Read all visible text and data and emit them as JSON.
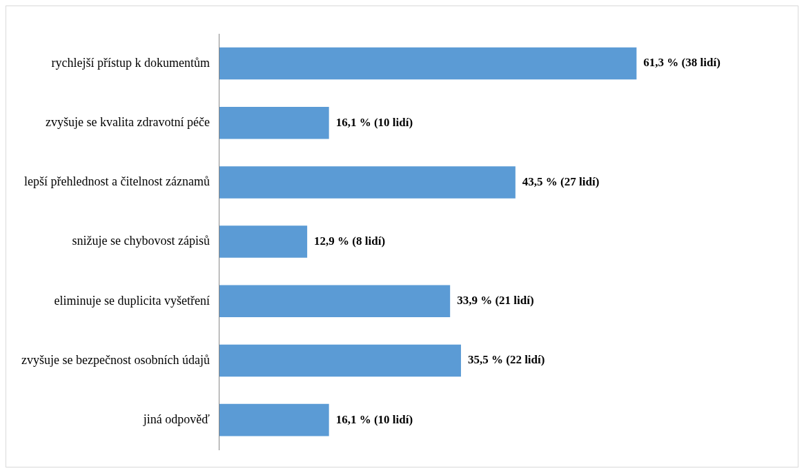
{
  "chart_data": {
    "type": "bar",
    "orientation": "horizontal",
    "categories": [
      "rychlejší přístup k dokumentům",
      "zvyšuje se kvalita zdravotní péče",
      "lepší přehlednost a čitelnost záznamů",
      "snižuje se chybovost zápisů",
      "eliminuje se duplicita vyšetření",
      "zvyšuje se bezpečnost osobních údajů",
      "jiná odpověď"
    ],
    "values": [
      61.3,
      16.1,
      43.5,
      12.9,
      33.9,
      35.5,
      16.1
    ],
    "value_labels": [
      "61,3 % (38 lidí)",
      "16,1 % (10 lidí)",
      "43,5 % (27 lidí)",
      "12,9 % (8 lidí)",
      "33,9 % (21 lidí)",
      "35,5 % (22 lidí)",
      "16,1 % (10 lidí)"
    ],
    "color": "#5b9bd5",
    "grid": false,
    "legend": false
  }
}
